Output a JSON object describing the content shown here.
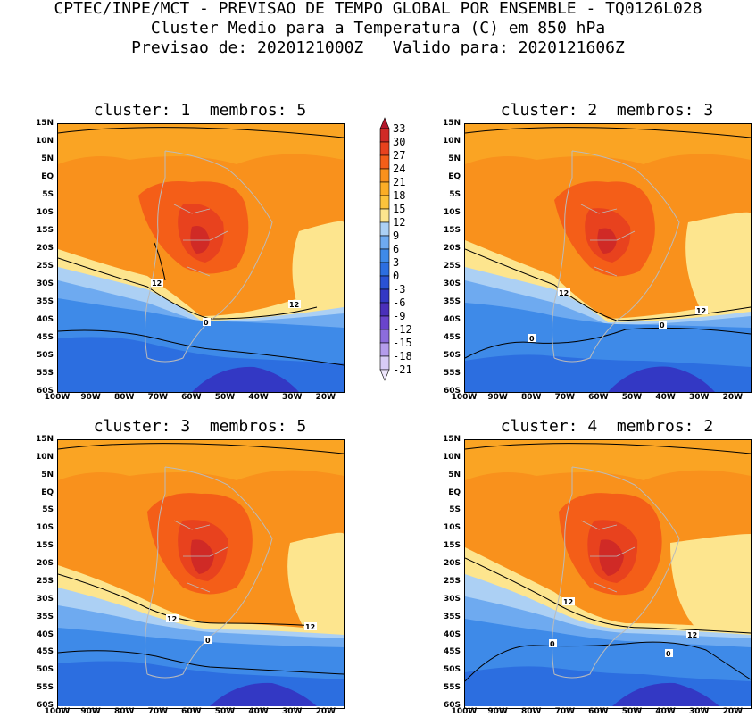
{
  "header": {
    "line1": "CPTEC/INPE/MCT - PREVISAO DE TEMPO GLOBAL POR ENSEMBLE - TQ0126L028",
    "line2": "Cluster Medio para a Temperatura (C) em 850 hPa",
    "line3": "Previsao de: 2020121000Z   Valido para: 2020121606Z"
  },
  "panels": [
    {
      "title": "cluster: 1  membros: 5",
      "contour_labels": [
        "12",
        "12",
        "0"
      ]
    },
    {
      "title": "cluster: 2  membros: 3",
      "contour_labels": [
        "12",
        "12",
        "0",
        "0"
      ]
    },
    {
      "title": "cluster: 3  membros: 5",
      "contour_labels": [
        "12",
        "12",
        "0"
      ]
    },
    {
      "title": "cluster: 4  membros: 2",
      "contour_labels": [
        "12",
        "12",
        "0",
        "0"
      ]
    }
  ],
  "lat_ticks": [
    "15N",
    "10N",
    "5N",
    "EQ",
    "5S",
    "10S",
    "15S",
    "20S",
    "25S",
    "30S",
    "35S",
    "40S",
    "45S",
    "50S",
    "55S",
    "60S"
  ],
  "lon_ticks": [
    "100W",
    "90W",
    "80W",
    "70W",
    "60W",
    "50W",
    "40W",
    "30W",
    "20W"
  ],
  "colorbar": {
    "levels": [
      "33",
      "30",
      "27",
      "24",
      "21",
      "18",
      "15",
      "12",
      "9",
      "6",
      "3",
      "0",
      "-3",
      "-6",
      "-9",
      "-12",
      "-15",
      "-18",
      "-21"
    ],
    "colors": [
      "#b4162a",
      "#d02a26",
      "#e8421e",
      "#f45e18",
      "#f9911c",
      "#fbad26",
      "#fcc33c",
      "#fde58e",
      "#acd0f4",
      "#6eaaf0",
      "#3e8ae8",
      "#2c6ee0",
      "#2a52d4",
      "#3338c4",
      "#4a2fba",
      "#6a44cc",
      "#8c6cdc",
      "#b49cec",
      "#d8ccf6",
      "#eee6fc"
    ]
  },
  "chart_data": {
    "type": "heatmap",
    "variable": "Temperatura (C) em 850 hPa",
    "lat_range": [
      "60S",
      "15N"
    ],
    "lon_range": [
      "100W",
      "15W"
    ],
    "contour_levels_labeled": [
      12,
      0
    ],
    "color_levels": [
      -21,
      -18,
      -15,
      -12,
      -9,
      -6,
      -3,
      0,
      3,
      6,
      9,
      12,
      15,
      18,
      21,
      24,
      27,
      30,
      33
    ]
  }
}
